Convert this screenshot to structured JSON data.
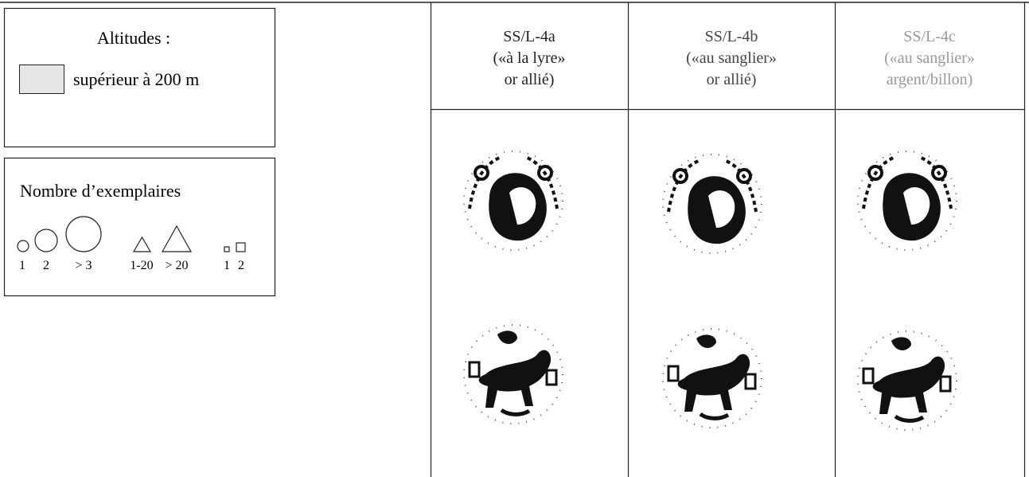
{
  "legend": {
    "altitudes": {
      "title": "Altitudes :",
      "items": [
        "supérieur à 200 m"
      ]
    },
    "counts": {
      "title": "Nombre  d’exemplaires",
      "labels": [
        "1",
        "2",
        "> 3",
        "1-20",
        "> 20",
        "1",
        "2"
      ]
    }
  },
  "table": {
    "headers": [
      [
        "SS/L-4a",
        "(«à la lyre»",
        "or allié)"
      ],
      [
        "SS/L-4b",
        "(«au sanglier»",
        "or allié)"
      ],
      [
        "SS/L-4c",
        "(«au sanglier»",
        "argent/billon)"
      ]
    ]
  }
}
